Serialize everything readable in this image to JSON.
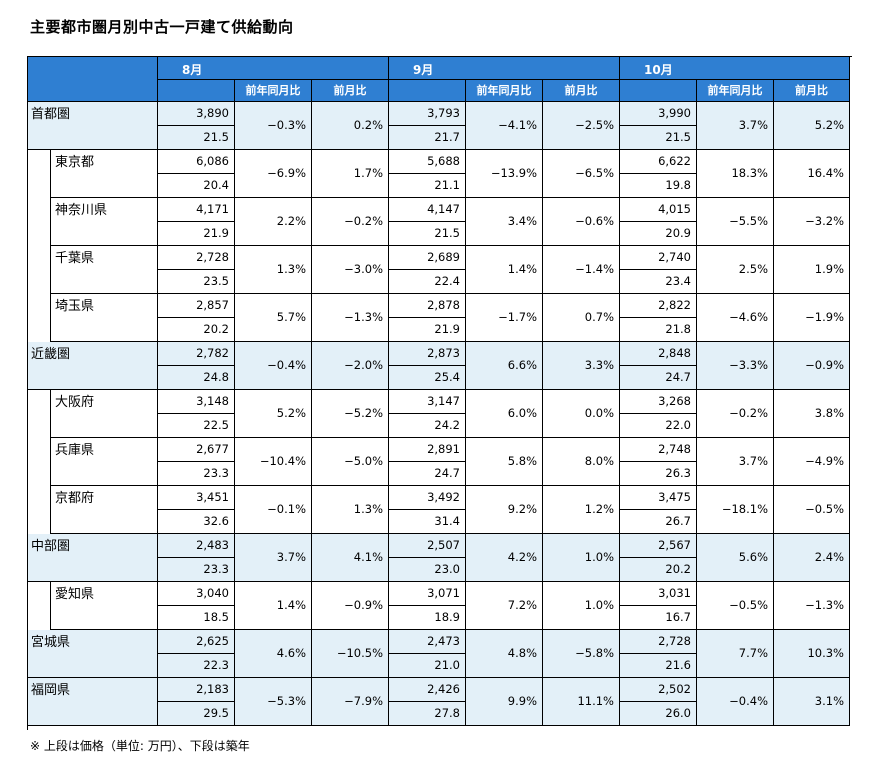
{
  "title": "主要都市圏月別中古一戸建て供給動向",
  "note": "※ 上段は価格（単位: 万円）、下段は築年",
  "headers": {
    "months": [
      "8月",
      "9月",
      "10月"
    ],
    "yoy": "前年同月比",
    "mom": "前月比"
  },
  "rows": [
    {
      "name": "首都圏",
      "level": 0,
      "months": [
        {
          "price": "3,890",
          "age": "21.5",
          "yoy": "−0.3%",
          "mom": "0.2%"
        },
        {
          "price": "3,793",
          "age": "21.7",
          "yoy": "−4.1%",
          "mom": "−2.5%"
        },
        {
          "price": "3,990",
          "age": "21.5",
          "yoy": "3.7%",
          "mom": "5.2%"
        }
      ]
    },
    {
      "name": "東京都",
      "level": 1,
      "months": [
        {
          "price": "6,086",
          "age": "20.4",
          "yoy": "−6.9%",
          "mom": "1.7%"
        },
        {
          "price": "5,688",
          "age": "21.1",
          "yoy": "−13.9%",
          "mom": "−6.5%"
        },
        {
          "price": "6,622",
          "age": "19.8",
          "yoy": "18.3%",
          "mom": "16.4%"
        }
      ]
    },
    {
      "name": "神奈川県",
      "level": 1,
      "months": [
        {
          "price": "4,171",
          "age": "21.9",
          "yoy": "2.2%",
          "mom": "−0.2%"
        },
        {
          "price": "4,147",
          "age": "21.5",
          "yoy": "3.4%",
          "mom": "−0.6%"
        },
        {
          "price": "4,015",
          "age": "20.9",
          "yoy": "−5.5%",
          "mom": "−3.2%"
        }
      ]
    },
    {
      "name": "千葉県",
      "level": 1,
      "months": [
        {
          "price": "2,728",
          "age": "23.5",
          "yoy": "1.3%",
          "mom": "−3.0%"
        },
        {
          "price": "2,689",
          "age": "22.4",
          "yoy": "1.4%",
          "mom": "−1.4%"
        },
        {
          "price": "2,740",
          "age": "23.4",
          "yoy": "2.5%",
          "mom": "1.9%"
        }
      ]
    },
    {
      "name": "埼玉県",
      "level": 1,
      "months": [
        {
          "price": "2,857",
          "age": "20.2",
          "yoy": "5.7%",
          "mom": "−1.3%"
        },
        {
          "price": "2,878",
          "age": "21.9",
          "yoy": "−1.7%",
          "mom": "0.7%"
        },
        {
          "price": "2,822",
          "age": "21.8",
          "yoy": "−4.6%",
          "mom": "−1.9%"
        }
      ]
    },
    {
      "name": "近畿圏",
      "level": 0,
      "months": [
        {
          "price": "2,782",
          "age": "24.8",
          "yoy": "−0.4%",
          "mom": "−2.0%"
        },
        {
          "price": "2,873",
          "age": "25.4",
          "yoy": "6.6%",
          "mom": "3.3%"
        },
        {
          "price": "2,848",
          "age": "24.7",
          "yoy": "−3.3%",
          "mom": "−0.9%"
        }
      ]
    },
    {
      "name": "大阪府",
      "level": 1,
      "months": [
        {
          "price": "3,148",
          "age": "22.5",
          "yoy": "5.2%",
          "mom": "−5.2%"
        },
        {
          "price": "3,147",
          "age": "24.2",
          "yoy": "6.0%",
          "mom": "0.0%"
        },
        {
          "price": "3,268",
          "age": "22.0",
          "yoy": "−0.2%",
          "mom": "3.8%"
        }
      ]
    },
    {
      "name": "兵庫県",
      "level": 1,
      "months": [
        {
          "price": "2,677",
          "age": "23.3",
          "yoy": "−10.4%",
          "mom": "−5.0%"
        },
        {
          "price": "2,891",
          "age": "24.7",
          "yoy": "5.8%",
          "mom": "8.0%"
        },
        {
          "price": "2,748",
          "age": "26.3",
          "yoy": "3.7%",
          "mom": "−4.9%"
        }
      ]
    },
    {
      "name": "京都府",
      "level": 1,
      "months": [
        {
          "price": "3,451",
          "age": "32.6",
          "yoy": "−0.1%",
          "mom": "1.3%"
        },
        {
          "price": "3,492",
          "age": "31.4",
          "yoy": "9.2%",
          "mom": "1.2%"
        },
        {
          "price": "3,475",
          "age": "26.7",
          "yoy": "−18.1%",
          "mom": "−0.5%"
        }
      ]
    },
    {
      "name": "中部圏",
      "level": 0,
      "months": [
        {
          "price": "2,483",
          "age": "23.3",
          "yoy": "3.7%",
          "mom": "4.1%"
        },
        {
          "price": "2,507",
          "age": "23.0",
          "yoy": "4.2%",
          "mom": "1.0%"
        },
        {
          "price": "2,567",
          "age": "20.2",
          "yoy": "5.6%",
          "mom": "2.4%"
        }
      ]
    },
    {
      "name": "愛知県",
      "level": 1,
      "months": [
        {
          "price": "3,040",
          "age": "18.5",
          "yoy": "1.4%",
          "mom": "−0.9%"
        },
        {
          "price": "3,071",
          "age": "18.9",
          "yoy": "7.2%",
          "mom": "1.0%"
        },
        {
          "price": "3,031",
          "age": "16.7",
          "yoy": "−0.5%",
          "mom": "−1.3%"
        }
      ]
    },
    {
      "name": "宮城県",
      "level": 0,
      "months": [
        {
          "price": "2,625",
          "age": "22.3",
          "yoy": "4.6%",
          "mom": "−10.5%"
        },
        {
          "price": "2,473",
          "age": "21.0",
          "yoy": "4.8%",
          "mom": "−5.8%"
        },
        {
          "price": "2,728",
          "age": "21.6",
          "yoy": "7.7%",
          "mom": "10.3%"
        }
      ]
    },
    {
      "name": "福岡県",
      "level": 0,
      "months": [
        {
          "price": "2,183",
          "age": "29.5",
          "yoy": "−5.3%",
          "mom": "−7.9%"
        },
        {
          "price": "2,426",
          "age": "27.8",
          "yoy": "9.9%",
          "mom": "11.1%"
        },
        {
          "price": "2,502",
          "age": "26.0",
          "yoy": "−0.4%",
          "mom": "3.1%"
        }
      ]
    }
  ],
  "colors": {
    "header": "#2f7fd2",
    "region_fill": "#e3f0f8",
    "background": "#ffffff"
  }
}
